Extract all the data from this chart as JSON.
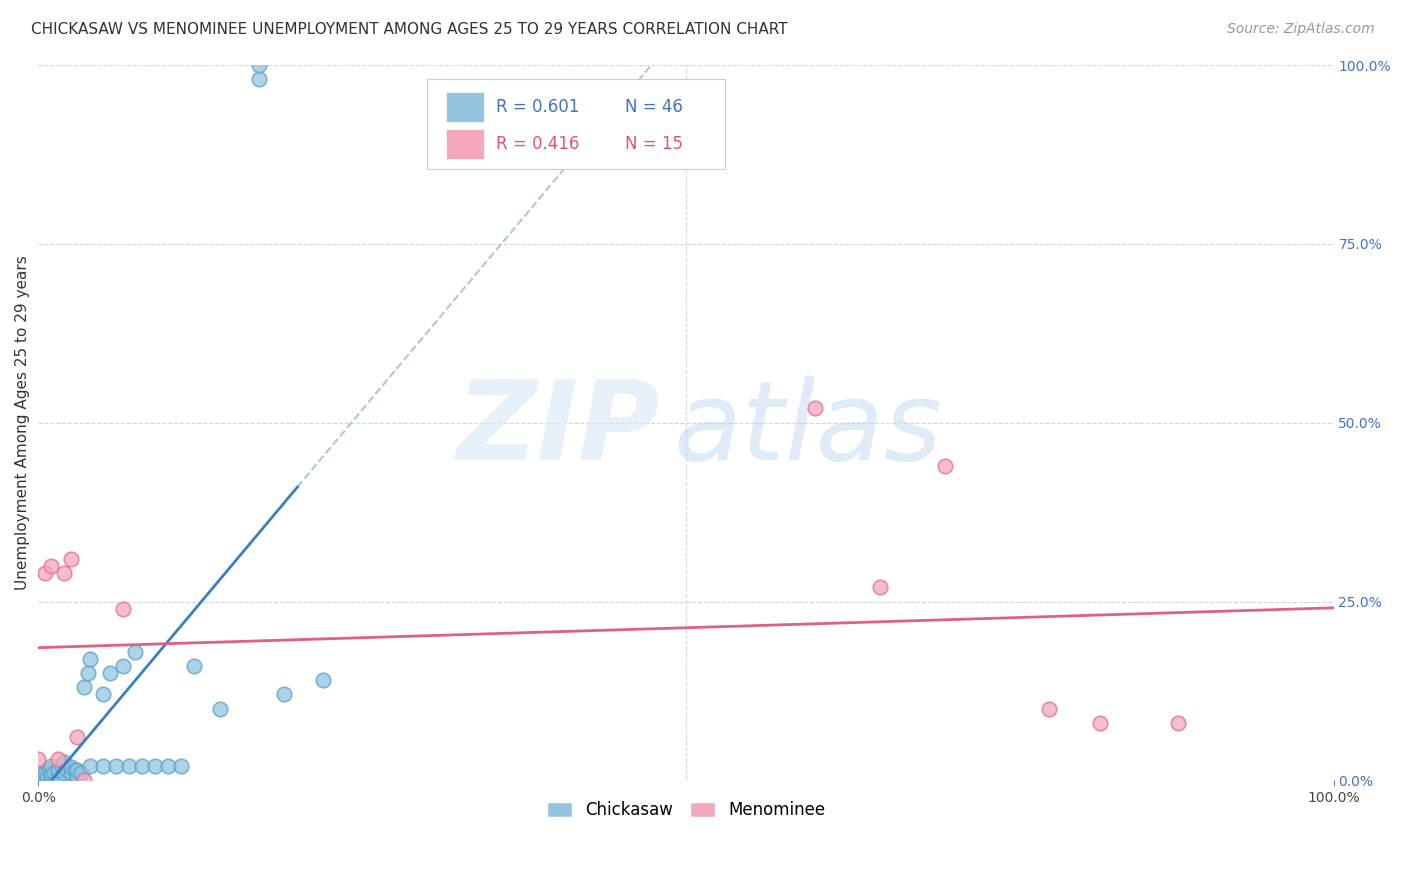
{
  "title": "CHICKASAW VS MENOMINEE UNEMPLOYMENT AMONG AGES 25 TO 29 YEARS CORRELATION CHART",
  "source": "Source: ZipAtlas.com",
  "ylabel": "Unemployment Among Ages 25 to 29 years",
  "xlim": [
    0,
    1
  ],
  "ylim": [
    0,
    1
  ],
  "xtick_positions": [
    0,
    1.0
  ],
  "xtick_labels": [
    "0.0%",
    "100.0%"
  ],
  "ytick_positions": [
    0,
    0.25,
    0.5,
    0.75,
    1.0
  ],
  "ytick_labels_right": [
    "0.0%",
    "25.0%",
    "50.0%",
    "75.0%",
    "100.0%"
  ],
  "chickasaw_color": "#93c5e0",
  "chickasaw_edge_color": "#5ba3cb",
  "menominee_color": "#f4a8bc",
  "menominee_edge_color": "#e07090",
  "chickasaw_line_color": "#3a7fbf",
  "chickasaw_dash_color": "#aac8e0",
  "menominee_line_color": "#e06080",
  "chickasaw_R": 0.601,
  "chickasaw_N": 46,
  "menominee_R": 0.416,
  "menominee_N": 15,
  "watermark_color": "#dce8f5",
  "background_color": "#ffffff",
  "grid_color": "#d0d8e0",
  "chickasaw_x": [
    0.0,
    0.0,
    0.0,
    0.0,
    0.0,
    0.0,
    0.005,
    0.007,
    0.008,
    0.01,
    0.01,
    0.01,
    0.012,
    0.015,
    0.015,
    0.018,
    0.02,
    0.02,
    0.022,
    0.025,
    0.025,
    0.028,
    0.03,
    0.03,
    0.033,
    0.035,
    0.038,
    0.04,
    0.04,
    0.05,
    0.05,
    0.055,
    0.06,
    0.065,
    0.07,
    0.075,
    0.08,
    0.09,
    0.1,
    0.11,
    0.12,
    0.14,
    0.17,
    0.17,
    0.19,
    0.22
  ],
  "chickasaw_y": [
    0.0,
    0.0,
    0.0,
    0.005,
    0.008,
    0.01,
    0.01,
    0.005,
    0.015,
    0.005,
    0.01,
    0.02,
    0.01,
    0.005,
    0.015,
    0.02,
    0.01,
    0.025,
    0.015,
    0.01,
    0.018,
    0.015,
    0.005,
    0.015,
    0.01,
    0.13,
    0.15,
    0.02,
    0.17,
    0.02,
    0.12,
    0.15,
    0.02,
    0.16,
    0.02,
    0.18,
    0.02,
    0.02,
    0.02,
    0.02,
    0.16,
    0.1,
    0.98,
    1.0,
    0.12,
    0.14
  ],
  "menominee_x": [
    0.0,
    0.005,
    0.01,
    0.015,
    0.02,
    0.025,
    0.03,
    0.035,
    0.065,
    0.6,
    0.65,
    0.7,
    0.78,
    0.82,
    0.88
  ],
  "menominee_y": [
    0.03,
    0.29,
    0.3,
    0.03,
    0.29,
    0.31,
    0.06,
    0.0,
    0.24,
    0.52,
    0.27,
    0.44,
    0.1,
    0.08,
    0.08
  ],
  "title_fontsize": 11,
  "axis_label_fontsize": 11,
  "tick_fontsize": 10,
  "source_fontsize": 10,
  "legend_chickasaw_color": "#4472c4",
  "legend_menominee_color": "#e05575"
}
